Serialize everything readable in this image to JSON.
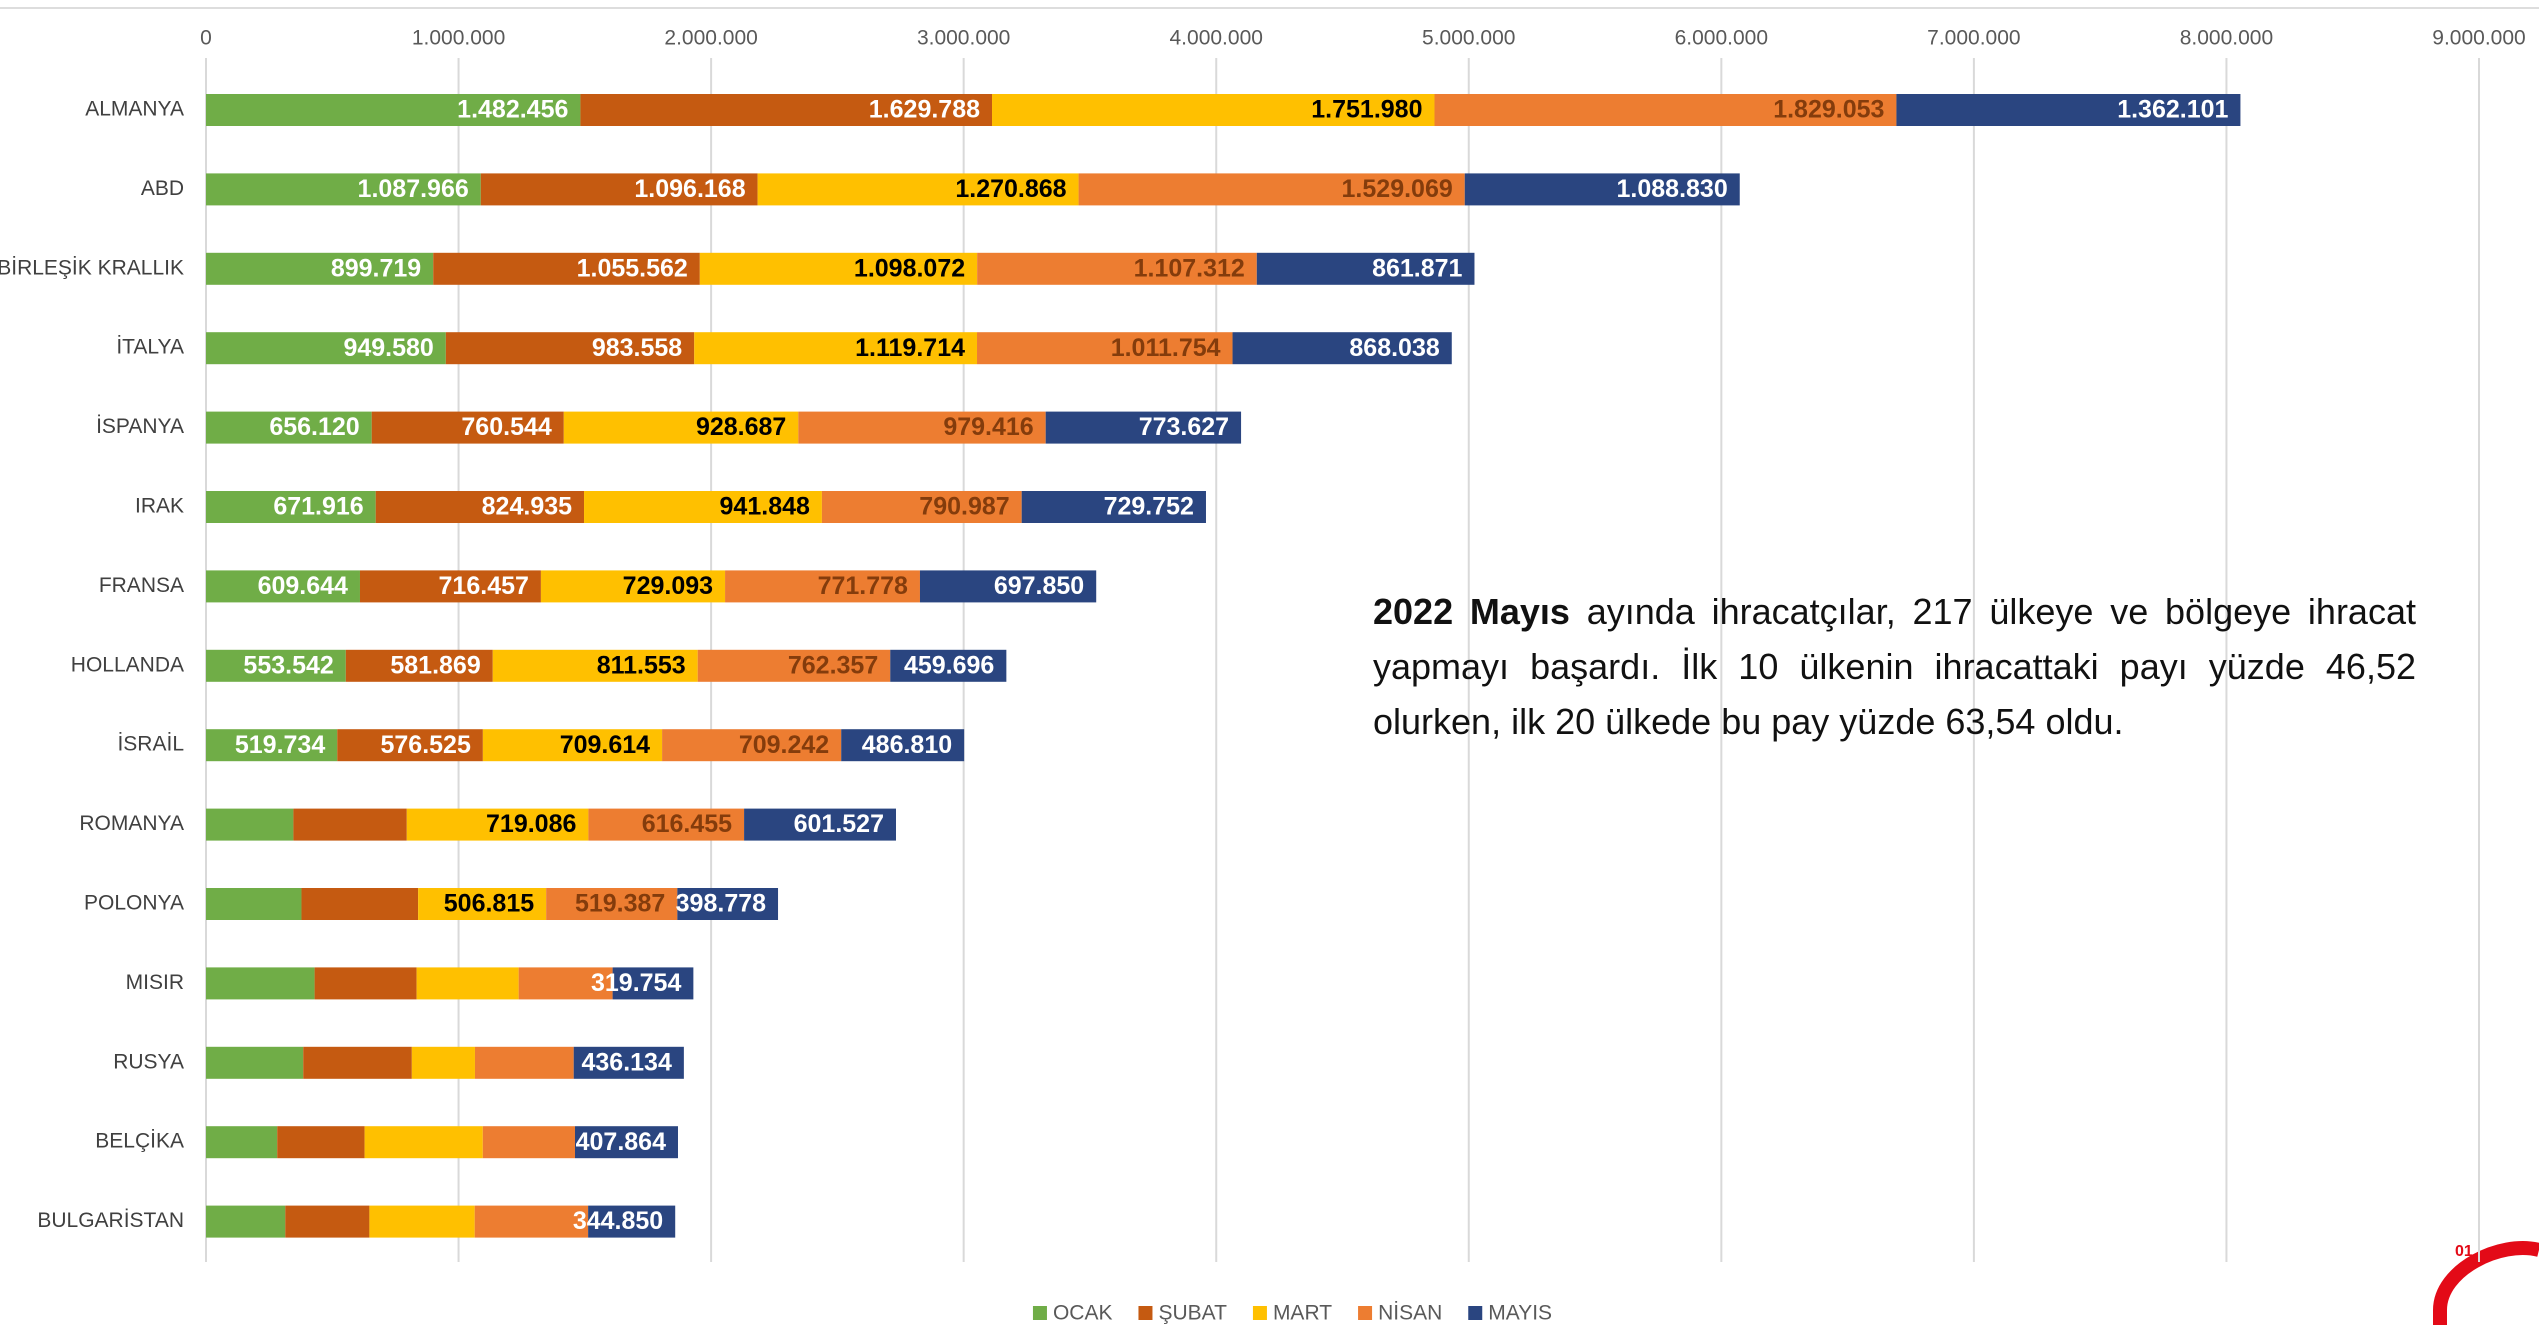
{
  "chart_data": {
    "type": "stacked-bar-horizontal",
    "categories": [
      "ALMANYA",
      "ABD",
      "BİRLEŞİK KRALLIK",
      "İTALYA",
      "İSPANYA",
      "IRAK",
      "FRANSA",
      "HOLLANDA",
      "İSRAİL",
      "ROMANYA",
      "POLONYA",
      "MISIR",
      "RUSYA",
      "BELÇİKA",
      "BULGARİSTAN"
    ],
    "series": [
      {
        "name": "OCAK",
        "color": "#70ad47",
        "label_color": "#ffffff",
        "values": [
          1482456,
          1087966,
          899719,
          949580,
          656120,
          671916,
          609644,
          553542,
          519734,
          346000,
          378000,
          430000,
          385000,
          282000,
          314000
        ],
        "value_labels": [
          "1.482.456",
          "1.087.966",
          "899.719",
          "949.580",
          "656.120",
          "671.916",
          "609.644",
          "553.542",
          "519.734",
          null,
          null,
          null,
          null,
          null,
          null
        ]
      },
      {
        "name": "ŞUBAT",
        "color": "#c55a11",
        "label_color": "#ffffff",
        "values": [
          1629788,
          1096168,
          1055562,
          983558,
          760544,
          824935,
          716457,
          581869,
          576525,
          449000,
          462000,
          404000,
          430000,
          346000,
          333000
        ],
        "value_labels": [
          "1.629.788",
          "1.096.168",
          "1.055.562",
          "983.558",
          "760.544",
          "824.935",
          "716.457",
          "581.869",
          "576.525",
          null,
          null,
          null,
          null,
          null,
          null
        ]
      },
      {
        "name": "MART",
        "color": "#ffc000",
        "label_color": "#000000",
        "values": [
          1751980,
          1270868,
          1098072,
          1119714,
          928687,
          941848,
          729093,
          811553,
          709614,
          719086,
          506815,
          404000,
          250000,
          468000,
          417000
        ],
        "value_labels": [
          "1.751.980",
          "1.270.868",
          "1.098.072",
          "1.119.714",
          "928.687",
          "941.848",
          "729.093",
          "811.553",
          "709.614",
          "719.086",
          "506.815",
          null,
          null,
          null,
          null
        ]
      },
      {
        "name": "NİSAN",
        "color": "#ed7d31",
        "label_color": "#843c0c",
        "values": [
          1829053,
          1529069,
          1107312,
          1011754,
          979416,
          790987,
          771778,
          762357,
          709242,
          616455,
          519387,
          372000,
          391000,
          365000,
          449000
        ],
        "value_labels": [
          "1.829.053",
          "1.529.069",
          "1.107.312",
          "1.011.754",
          "979.416",
          "790.987",
          "771.778",
          "762.357",
          "709.242",
          "616.455",
          "519.387",
          null,
          null,
          null,
          null
        ]
      },
      {
        "name": "MAYIS",
        "color": "#2a4580",
        "label_color": "#ffffff",
        "values": [
          1362101,
          1088830,
          861871,
          868038,
          773627,
          729752,
          697850,
          459696,
          486810,
          601527,
          398778,
          319754,
          436134,
          407864,
          344850
        ],
        "value_labels": [
          "1.362.101",
          "1.088.830",
          "861.871",
          "868.038",
          "773.627",
          "729.752",
          "697.850",
          "459.696",
          "486.810",
          "601.527",
          "398.778",
          "319.754",
          "436.134",
          "407.864",
          "344.850"
        ]
      }
    ],
    "xlim": [
      0,
      9000000
    ],
    "xticks": [
      0,
      {
        "value": 1000000,
        "label": "1.000.000"
      },
      {
        "value": 2000000,
        "label": "2.000.000"
      },
      {
        "value": 3000000,
        "label": "3.000.000"
      },
      {
        "value": 4000000,
        "label": "4.000.000"
      },
      {
        "value": 5000000,
        "label": "5.000.000"
      },
      {
        "value": 6000000,
        "label": "6.000.000"
      },
      {
        "value": 7000000,
        "label": "7.000.000"
      },
      {
        "value": 8000000,
        "label": "8.000.000"
      },
      {
        "value": 9000000,
        "label": "9.000.000"
      }
    ],
    "grid": true,
    "legend": "bottom",
    "annotation": {
      "bold": "2022 Mayıs",
      "text": " ayında ihracatçılar, 217 ülkeye ve bölgeye ihracat yapmayı başardı. İlk 10 ülkenin ihracattaki payı yüzde 46,52 olurken, ilk 20 ülkede bu pay yüzde 63,54 oldu."
    }
  },
  "logo_text": "01"
}
